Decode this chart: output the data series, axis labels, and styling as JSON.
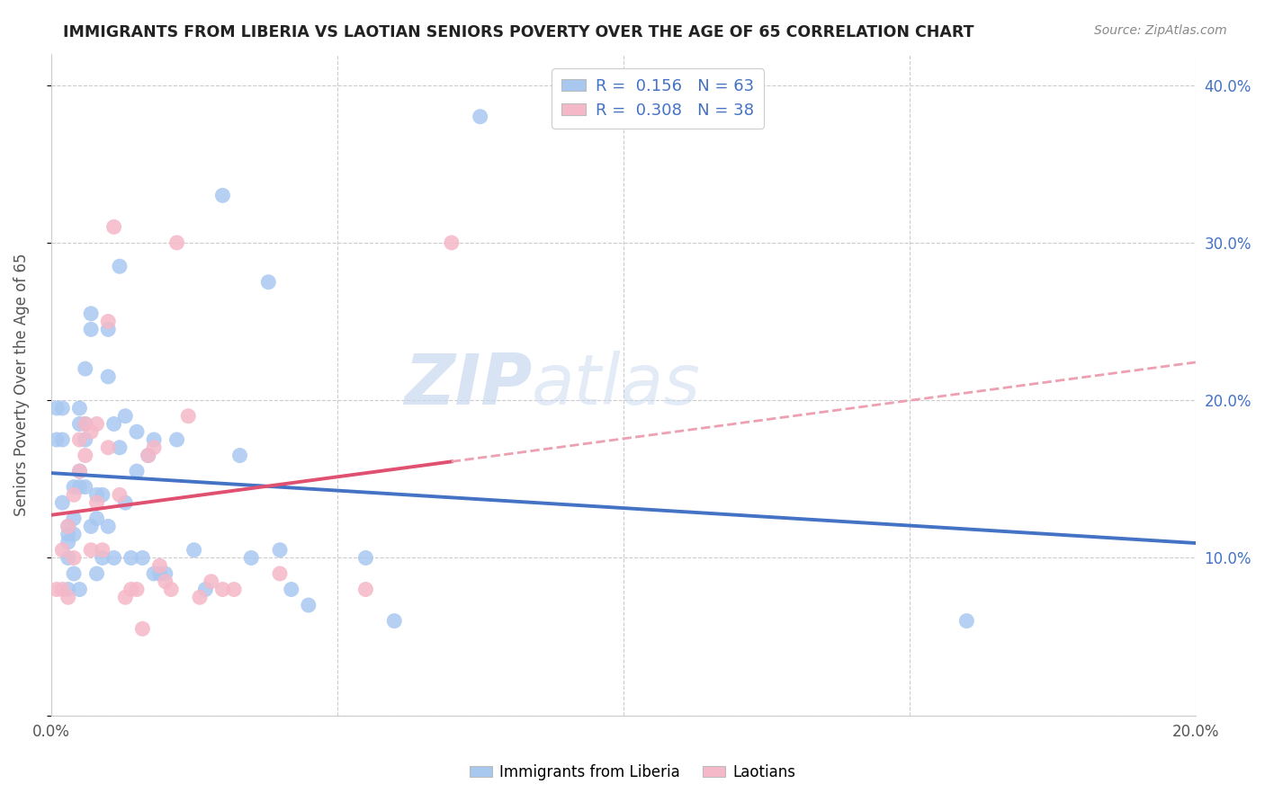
{
  "title": "IMMIGRANTS FROM LIBERIA VS LAOTIAN SENIORS POVERTY OVER THE AGE OF 65 CORRELATION CHART",
  "source": "Source: ZipAtlas.com",
  "ylabel": "Seniors Poverty Over the Age of 65",
  "xlim": [
    0.0,
    0.2
  ],
  "ylim": [
    0.0,
    0.42
  ],
  "xticks": [
    0.0,
    0.05,
    0.1,
    0.15,
    0.2
  ],
  "xtick_labels": [
    "0.0%",
    "",
    "",
    "",
    "20.0%"
  ],
  "yticks": [
    0.0,
    0.1,
    0.2,
    0.3,
    0.4
  ],
  "ytick_labels": [
    "",
    "10.0%",
    "20.0%",
    "30.0%",
    "40.0%"
  ],
  "color_blue": "#A8C8F0",
  "color_pink": "#F5B8C8",
  "color_line_blue": "#4472C4",
  "color_line_pink": "#E05070",
  "color_line_pink_dash": "#ECA0B0",
  "liberia_x": [
    0.001,
    0.001,
    0.002,
    0.002,
    0.002,
    0.003,
    0.003,
    0.003,
    0.003,
    0.003,
    0.004,
    0.004,
    0.004,
    0.004,
    0.005,
    0.005,
    0.005,
    0.005,
    0.005,
    0.006,
    0.006,
    0.006,
    0.006,
    0.007,
    0.007,
    0.007,
    0.008,
    0.008,
    0.008,
    0.009,
    0.009,
    0.01,
    0.01,
    0.01,
    0.011,
    0.011,
    0.012,
    0.012,
    0.013,
    0.013,
    0.014,
    0.015,
    0.015,
    0.016,
    0.017,
    0.018,
    0.018,
    0.019,
    0.02,
    0.022,
    0.025,
    0.027,
    0.03,
    0.033,
    0.035,
    0.038,
    0.04,
    0.042,
    0.045,
    0.055,
    0.06,
    0.075,
    0.16
  ],
  "liberia_y": [
    0.195,
    0.175,
    0.195,
    0.175,
    0.135,
    0.12,
    0.115,
    0.11,
    0.1,
    0.08,
    0.145,
    0.125,
    0.115,
    0.09,
    0.195,
    0.185,
    0.155,
    0.145,
    0.08,
    0.22,
    0.185,
    0.175,
    0.145,
    0.255,
    0.245,
    0.12,
    0.14,
    0.125,
    0.09,
    0.14,
    0.1,
    0.245,
    0.215,
    0.12,
    0.185,
    0.1,
    0.285,
    0.17,
    0.19,
    0.135,
    0.1,
    0.18,
    0.155,
    0.1,
    0.165,
    0.175,
    0.09,
    0.09,
    0.09,
    0.175,
    0.105,
    0.08,
    0.33,
    0.165,
    0.1,
    0.275,
    0.105,
    0.08,
    0.07,
    0.1,
    0.06,
    0.38,
    0.06
  ],
  "laotian_x": [
    0.001,
    0.002,
    0.002,
    0.003,
    0.003,
    0.004,
    0.004,
    0.005,
    0.005,
    0.006,
    0.006,
    0.007,
    0.007,
    0.008,
    0.008,
    0.009,
    0.01,
    0.01,
    0.011,
    0.012,
    0.013,
    0.014,
    0.015,
    0.016,
    0.017,
    0.018,
    0.019,
    0.02,
    0.021,
    0.022,
    0.024,
    0.026,
    0.028,
    0.03,
    0.032,
    0.04,
    0.055,
    0.07
  ],
  "laotian_y": [
    0.08,
    0.105,
    0.08,
    0.12,
    0.075,
    0.14,
    0.1,
    0.175,
    0.155,
    0.185,
    0.165,
    0.18,
    0.105,
    0.185,
    0.135,
    0.105,
    0.25,
    0.17,
    0.31,
    0.14,
    0.075,
    0.08,
    0.08,
    0.055,
    0.165,
    0.17,
    0.095,
    0.085,
    0.08,
    0.3,
    0.19,
    0.075,
    0.085,
    0.08,
    0.08,
    0.09,
    0.08,
    0.3
  ]
}
